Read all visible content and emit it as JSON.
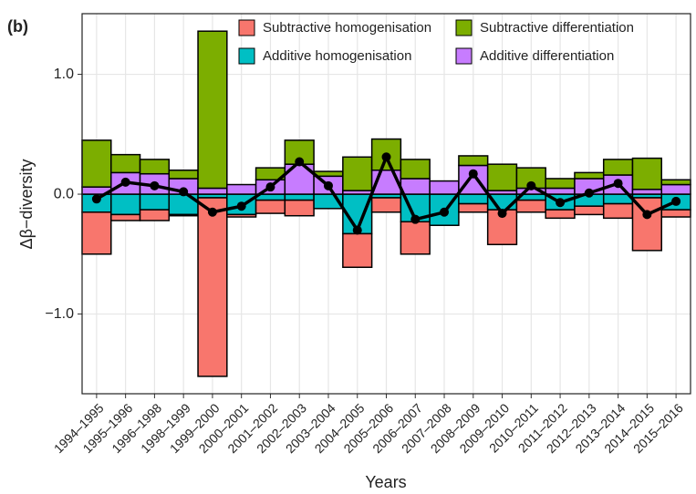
{
  "chart_data": {
    "type": "bar",
    "panel_label": "(b)",
    "ylabel": "Δβ−diversity",
    "xlabel": "Years",
    "categories": [
      "1994–1995",
      "1995–1996",
      "1996–1998",
      "1998–1999",
      "1999–2000",
      "2000–2001",
      "2001–2002",
      "2002–2003",
      "2003–2004",
      "2004–2005",
      "2005–2006",
      "2006–2007",
      "2007–2008",
      "2008–2009",
      "2009–2010",
      "2010–2011",
      "2011–2012",
      "2012–2013",
      "2013–2014",
      "2014–2015",
      "2015–2016"
    ],
    "series": [
      {
        "name": "Subtractive homogenisation",
        "color": "#F8766D",
        "values": [
          -0.35,
          -0.05,
          -0.09,
          -0.01,
          -1.49,
          -0.02,
          -0.11,
          -0.13,
          0,
          -0.28,
          -0.12,
          -0.27,
          0,
          -0.07,
          -0.29,
          -0.1,
          -0.07,
          -0.07,
          -0.12,
          -0.44,
          -0.06
        ]
      },
      {
        "name": "Subtractive differentiation",
        "color": "#7CAE00",
        "values": [
          0.39,
          0.15,
          0.12,
          0.07,
          1.31,
          0,
          0.1,
          0.2,
          0.04,
          0.28,
          0.26,
          0.16,
          0,
          0.08,
          0.22,
          0.17,
          0.08,
          0.05,
          0.13,
          0.26,
          0.04
        ]
      },
      {
        "name": "Additive homogenisation",
        "color": "#00BFC4",
        "values": [
          -0.15,
          -0.17,
          -0.13,
          -0.17,
          -0.03,
          -0.17,
          -0.05,
          -0.05,
          -0.12,
          -0.33,
          -0.03,
          -0.23,
          -0.26,
          -0.08,
          -0.13,
          -0.05,
          -0.13,
          -0.1,
          -0.08,
          -0.03,
          -0.13
        ]
      },
      {
        "name": "Additive differentiation",
        "color": "#C77CFF",
        "values": [
          0.06,
          0.18,
          0.17,
          0.13,
          0.05,
          0.08,
          0.12,
          0.25,
          0.15,
          0.03,
          0.2,
          0.13,
          0.11,
          0.24,
          0.03,
          0.05,
          0.05,
          0.13,
          0.16,
          0.04,
          0.08
        ]
      }
    ],
    "net": {
      "color": "#000000",
      "values": [
        -0.04,
        0.1,
        0.07,
        0.02,
        -0.15,
        -0.1,
        0.06,
        0.27,
        0.07,
        -0.3,
        0.31,
        -0.21,
        -0.15,
        0.17,
        -0.16,
        0.07,
        -0.07,
        0.01,
        0.09,
        -0.17,
        -0.06
      ]
    },
    "ylim": [
      -1.665,
      1.506
    ],
    "yticks": [
      {
        "value": -1,
        "label": "−1.0"
      },
      {
        "value": 0,
        "label": "0.0"
      },
      {
        "value": 1,
        "label": "1.0"
      }
    ],
    "grid": true
  }
}
